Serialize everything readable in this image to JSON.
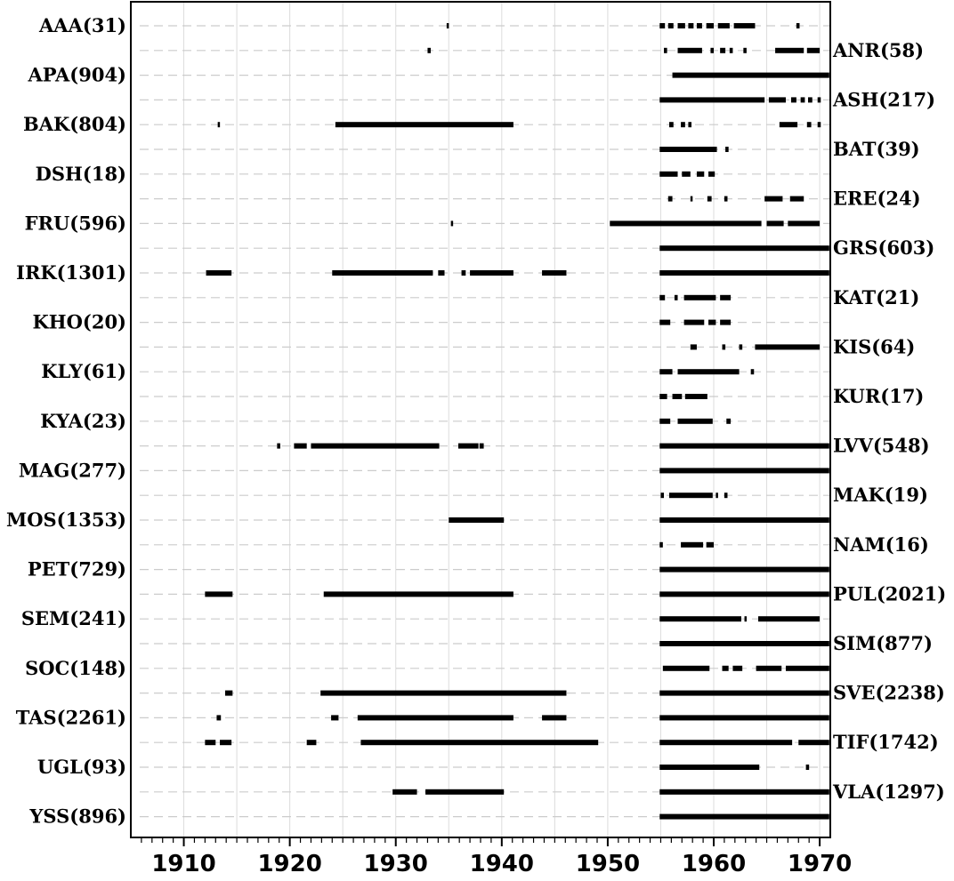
{
  "chart_data": {
    "type": "timeline",
    "title": "",
    "xlabel": "",
    "ylabel": "",
    "xlim": [
      1905,
      1971
    ],
    "x_ticks": [
      1910,
      1920,
      1930,
      1940,
      1950,
      1960,
      1970
    ],
    "x_tick_labels": [
      "1910",
      "1920",
      "1930",
      "1940",
      "1950",
      "1960",
      "1970"
    ],
    "grid": true,
    "stations": [
      {
        "label": "AAA(31)",
        "side": "left",
        "segments": [
          [
            1934.8,
            1935.0
          ],
          [
            1954.9,
            1955.4
          ],
          [
            1955.7,
            1956.2
          ],
          [
            1956.6,
            1957.3
          ],
          [
            1957.6,
            1958.1
          ],
          [
            1958.4,
            1958.9
          ],
          [
            1959.3,
            1960.0
          ],
          [
            1960.4,
            1961.5
          ],
          [
            1961.9,
            1963.9
          ],
          [
            1967.8,
            1968.1
          ]
        ]
      },
      {
        "label": "ANR(58)",
        "side": "right",
        "segments": [
          [
            1933.0,
            1933.3
          ],
          [
            1955.3,
            1955.6
          ],
          [
            1956.6,
            1958.9
          ],
          [
            1959.7,
            1960.0
          ],
          [
            1960.6,
            1961.1
          ],
          [
            1961.5,
            1961.8
          ],
          [
            1962.8,
            1963.1
          ],
          [
            1965.8,
            1968.5
          ],
          [
            1968.8,
            1970.0
          ]
        ]
      },
      {
        "label": "APA(904)",
        "side": "left",
        "segments": [
          [
            1956.1,
            1970.9
          ]
        ]
      },
      {
        "label": "ASH(217)",
        "side": "right",
        "segments": [
          [
            1954.9,
            1964.8
          ],
          [
            1965.2,
            1966.8
          ],
          [
            1967.3,
            1967.8
          ],
          [
            1968.2,
            1968.6
          ],
          [
            1968.9,
            1969.3
          ],
          [
            1969.8,
            1970.1
          ]
        ]
      },
      {
        "label": "BAK(804)",
        "side": "left",
        "segments": [
          [
            1913.2,
            1913.4
          ],
          [
            1924.3,
            1941.1
          ],
          [
            1955.8,
            1956.2
          ],
          [
            1956.9,
            1957.3
          ],
          [
            1957.6,
            1957.9
          ],
          [
            1966.2,
            1967.9
          ],
          [
            1968.8,
            1969.2
          ],
          [
            1969.8,
            1970.1
          ]
        ]
      },
      {
        "label": "BAT(39)",
        "side": "right",
        "segments": [
          [
            1954.9,
            1960.3
          ],
          [
            1961.1,
            1961.4
          ]
        ]
      },
      {
        "label": "DSH(18)",
        "side": "left",
        "segments": [
          [
            1954.9,
            1956.6
          ],
          [
            1957.0,
            1957.8
          ],
          [
            1958.4,
            1959.1
          ],
          [
            1959.5,
            1960.1
          ]
        ]
      },
      {
        "label": "ERE(24)",
        "side": "right",
        "segments": [
          [
            1955.7,
            1956.1
          ],
          [
            1957.8,
            1958.0
          ],
          [
            1959.4,
            1959.8
          ],
          [
            1961.0,
            1961.3
          ],
          [
            1964.8,
            1966.5
          ],
          [
            1967.2,
            1968.5
          ]
        ]
      },
      {
        "label": "FRU(596)",
        "side": "left",
        "segments": [
          [
            1935.2,
            1935.4
          ],
          [
            1950.2,
            1964.5
          ],
          [
            1965.0,
            1966.6
          ],
          [
            1967.0,
            1970.0
          ]
        ]
      },
      {
        "label": "GRS(603)",
        "side": "right",
        "segments": [
          [
            1954.9,
            1970.9
          ]
        ]
      },
      {
        "label": "IRK(1301)",
        "side": "left",
        "segments": [
          [
            1912.1,
            1914.5
          ],
          [
            1924.0,
            1933.5
          ],
          [
            1934.0,
            1934.6
          ],
          [
            1936.2,
            1936.6
          ],
          [
            1937.0,
            1941.1
          ],
          [
            1943.8,
            1946.1
          ],
          [
            1954.9,
            1970.9
          ]
        ]
      },
      {
        "label": "KAT(21)",
        "side": "right",
        "segments": [
          [
            1954.9,
            1955.4
          ],
          [
            1956.3,
            1956.6
          ],
          [
            1957.2,
            1960.2
          ],
          [
            1960.6,
            1961.6
          ]
        ]
      },
      {
        "label": "KHO(20)",
        "side": "left",
        "segments": [
          [
            1954.9,
            1955.9
          ],
          [
            1957.2,
            1959.1
          ],
          [
            1959.5,
            1960.2
          ],
          [
            1960.6,
            1961.6
          ]
        ]
      },
      {
        "label": "KIS(64)",
        "side": "right",
        "segments": [
          [
            1957.8,
            1958.4
          ],
          [
            1960.8,
            1961.1
          ],
          [
            1962.4,
            1962.7
          ],
          [
            1963.9,
            1970.0
          ]
        ]
      },
      {
        "label": "KLY(61)",
        "side": "left",
        "segments": [
          [
            1954.9,
            1956.1
          ],
          [
            1956.6,
            1962.4
          ],
          [
            1963.5,
            1963.8
          ]
        ]
      },
      {
        "label": "KUR(17)",
        "side": "right",
        "segments": [
          [
            1954.9,
            1955.6
          ],
          [
            1956.1,
            1957.0
          ],
          [
            1957.3,
            1959.4
          ]
        ]
      },
      {
        "label": "KYA(23)",
        "side": "left",
        "segments": [
          [
            1954.9,
            1955.9
          ],
          [
            1956.6,
            1959.9
          ],
          [
            1961.2,
            1961.6
          ]
        ]
      },
      {
        "label": "LVV(548)",
        "side": "right",
        "segments": [
          [
            1918.8,
            1919.1
          ],
          [
            1920.4,
            1921.6
          ],
          [
            1922.0,
            1934.1
          ],
          [
            1935.9,
            1937.8
          ],
          [
            1937.9,
            1938.3
          ],
          [
            1954.9,
            1970.9
          ]
        ]
      },
      {
        "label": "MAG(277)",
        "side": "left",
        "segments": [
          [
            1954.9,
            1970.9
          ]
        ]
      },
      {
        "label": "MAK(19)",
        "side": "right",
        "segments": [
          [
            1955.0,
            1955.3
          ],
          [
            1955.8,
            1959.9
          ],
          [
            1960.2,
            1960.4
          ],
          [
            1961.0,
            1961.3
          ]
        ]
      },
      {
        "label": "MOS(1353)",
        "side": "left",
        "segments": [
          [
            1935.0,
            1940.2
          ],
          [
            1954.9,
            1970.9
          ]
        ]
      },
      {
        "label": "NAM(16)",
        "side": "right",
        "segments": [
          [
            1954.9,
            1955.2
          ],
          [
            1956.9,
            1959.0
          ],
          [
            1959.3,
            1960.0
          ]
        ]
      },
      {
        "label": "PET(729)",
        "side": "left",
        "segments": [
          [
            1954.9,
            1970.9
          ]
        ]
      },
      {
        "label": "PUL(2021)",
        "side": "right",
        "segments": [
          [
            1912.0,
            1914.6
          ],
          [
            1923.2,
            1941.1
          ],
          [
            1954.9,
            1970.9
          ]
        ]
      },
      {
        "label": "SEM(241)",
        "side": "left",
        "segments": [
          [
            1954.9,
            1962.6
          ],
          [
            1962.9,
            1963.1
          ],
          [
            1964.2,
            1970.0
          ]
        ]
      },
      {
        "label": "SIM(877)",
        "side": "right",
        "segments": [
          [
            1954.9,
            1970.9
          ]
        ]
      },
      {
        "label": "SOC(148)",
        "side": "left",
        "segments": [
          [
            1955.2,
            1959.6
          ],
          [
            1960.8,
            1961.4
          ],
          [
            1961.8,
            1962.7
          ],
          [
            1964.0,
            1966.4
          ],
          [
            1966.8,
            1970.9
          ]
        ]
      },
      {
        "label": "SVE(2238)",
        "side": "right",
        "segments": [
          [
            1913.9,
            1914.6
          ],
          [
            1922.9,
            1946.1
          ],
          [
            1954.9,
            1970.9
          ]
        ]
      },
      {
        "label": "TAS(2261)",
        "side": "left",
        "segments": [
          [
            1913.1,
            1913.5
          ],
          [
            1923.9,
            1924.6
          ],
          [
            1926.4,
            1941.1
          ],
          [
            1943.8,
            1946.1
          ],
          [
            1954.9,
            1970.9
          ]
        ]
      },
      {
        "label": "TIF(1742)",
        "side": "right",
        "segments": [
          [
            1912.0,
            1913.0
          ],
          [
            1913.4,
            1914.5
          ],
          [
            1921.6,
            1922.5
          ],
          [
            1926.7,
            1949.1
          ],
          [
            1954.9,
            1967.4
          ],
          [
            1968.0,
            1970.9
          ]
        ]
      },
      {
        "label": "UGL(93)",
        "side": "left",
        "segments": [
          [
            1954.9,
            1964.3
          ],
          [
            1968.7,
            1969.0
          ]
        ]
      },
      {
        "label": "VLA(1297)",
        "side": "right",
        "segments": [
          [
            1929.7,
            1932.0
          ],
          [
            1932.8,
            1940.2
          ],
          [
            1954.9,
            1970.9
          ]
        ]
      },
      {
        "label": "YSS(896)",
        "side": "left",
        "segments": [
          [
            1954.9,
            1970.9
          ]
        ]
      }
    ]
  }
}
